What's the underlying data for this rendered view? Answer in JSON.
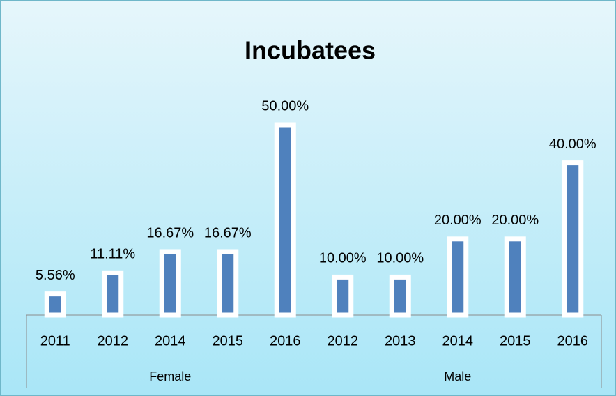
{
  "chart_data": {
    "type": "bar",
    "title": "Incubatees",
    "color": "#4f81bd",
    "groups": [
      {
        "name": "Female",
        "categories": [
          "2011",
          "2012",
          "2014",
          "2015",
          "2016"
        ],
        "values": [
          5.56,
          11.11,
          16.67,
          16.67,
          50.0
        ],
        "value_labels": [
          "5.56%",
          "11.11%",
          "16.67%",
          "16.67%",
          "50.00%"
        ]
      },
      {
        "name": "Male",
        "categories": [
          "2012",
          "2013",
          "2014",
          "2015",
          "2016"
        ],
        "values": [
          10.0,
          10.0,
          20.0,
          20.0,
          40.0
        ],
        "value_labels": [
          "10.00%",
          "10.00%",
          "20.00%",
          "20.00%",
          "40.00%"
        ]
      }
    ]
  }
}
